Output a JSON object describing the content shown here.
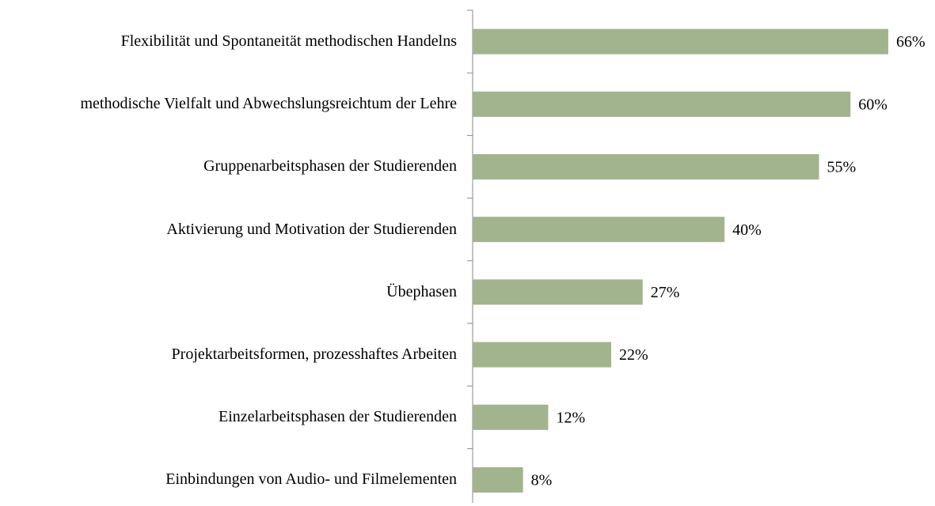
{
  "chart_data": {
    "type": "barh",
    "categories": [
      "Flexibilität und Spontaneität methodischen Handelns",
      "methodische Vielfalt und Abwechslungsreichtum der Lehre",
      "Gruppenarbeitsphasen der Studierenden",
      "Aktivierung und Motivation der Studierenden",
      "Übephasen",
      "Projektarbeitsformen, prozesshaftes Arbeiten",
      "Einzelarbeitsphasen der Studierenden",
      "Einbindungen von Audio- und Filmelementen"
    ],
    "values": [
      66,
      60,
      55,
      40,
      27,
      22,
      12,
      8
    ],
    "value_labels": [
      "66%",
      "60%",
      "55%",
      "40%",
      "27%",
      "22%",
      "12%",
      "8%"
    ],
    "color": "#a2b48d"
  }
}
